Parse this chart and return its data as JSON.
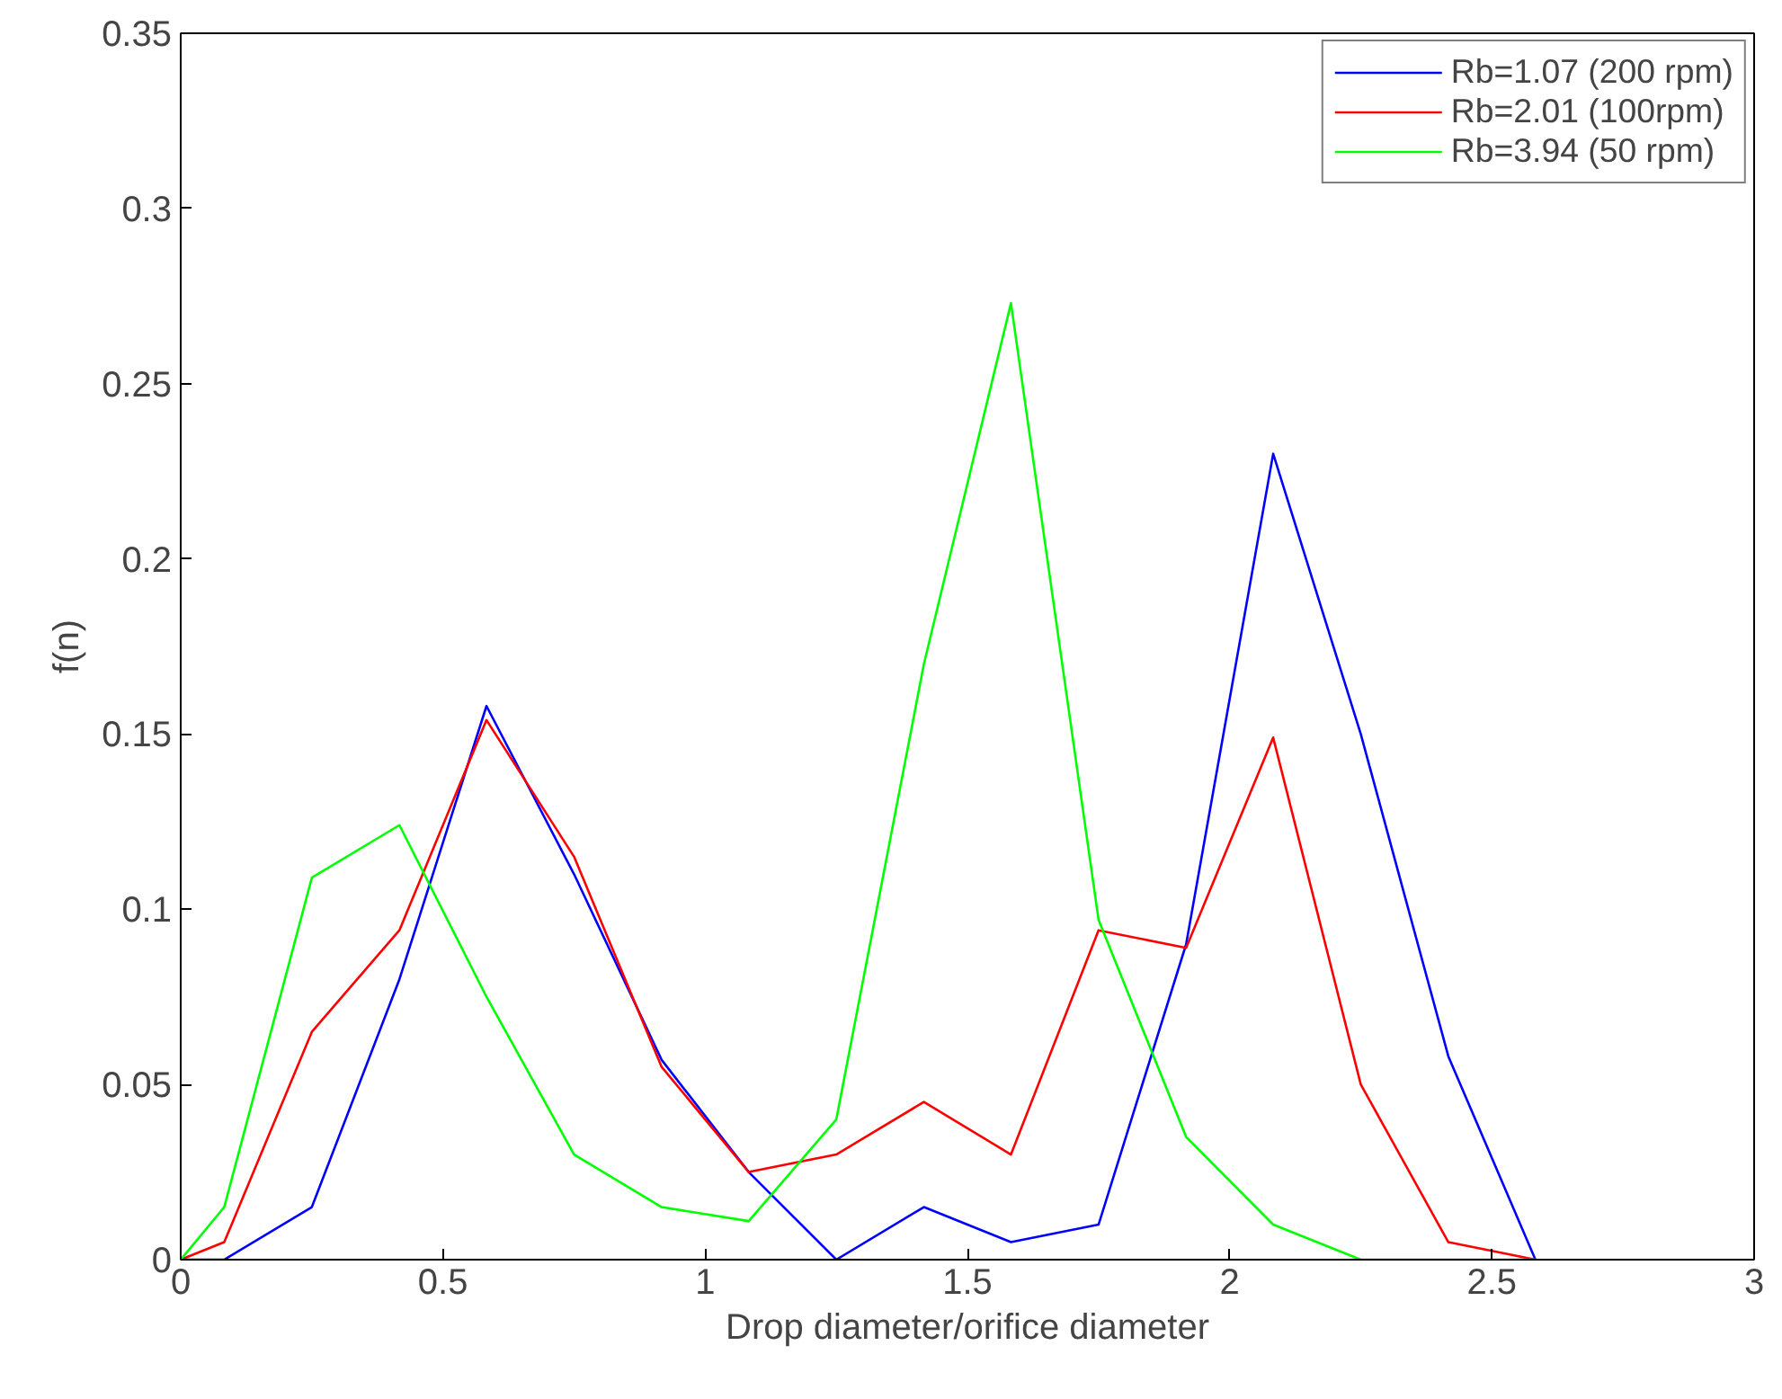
{
  "chart_data": {
    "type": "line",
    "xlabel": "Drop diameter/orifice diameter",
    "ylabel": "f(n)",
    "x": [
      0,
      0.083,
      0.25,
      0.417,
      0.583,
      0.75,
      0.917,
      1.083,
      1.25,
      1.417,
      1.583,
      1.75,
      1.917,
      2.083,
      2.25,
      2.417,
      2.583
    ],
    "series": [
      {
        "name": "Rb=1.07 (200 rpm)",
        "color": "#0000ff",
        "values": [
          0,
          0,
          0.015,
          0.08,
          0.158,
          0.11,
          0.057,
          0.025,
          0,
          0.015,
          0.005,
          0.01,
          0.09,
          0.23,
          0.15,
          0.058,
          0
        ]
      },
      {
        "name": "Rb=2.01 (100rpm)",
        "color": "#ff0000",
        "values": [
          0,
          0.005,
          0.065,
          0.094,
          0.154,
          0.115,
          0.055,
          0.025,
          0.03,
          0.045,
          0.03,
          0.094,
          0.089,
          0.149,
          0.05,
          0.005,
          0
        ]
      },
      {
        "name": "Rb=3.94 (50 rpm)",
        "color": "#00ff00",
        "values": [
          0,
          0.015,
          0.109,
          0.124,
          0.075,
          0.03,
          0.015,
          0.011,
          0.04,
          0.17,
          0.273,
          0.097,
          0.035,
          0.01,
          0,
          0,
          0
        ]
      }
    ],
    "xlim": [
      0,
      3
    ],
    "ylim": [
      0,
      0.35
    ],
    "xticks": [
      0,
      0.5,
      1,
      1.5,
      2,
      2.5,
      3
    ],
    "yticks": [
      0,
      0.05,
      0.1,
      0.15,
      0.2,
      0.25,
      0.3,
      0.35
    ],
    "grid": false,
    "legend": "top right",
    "marker": "none",
    "line_style": "solid"
  }
}
